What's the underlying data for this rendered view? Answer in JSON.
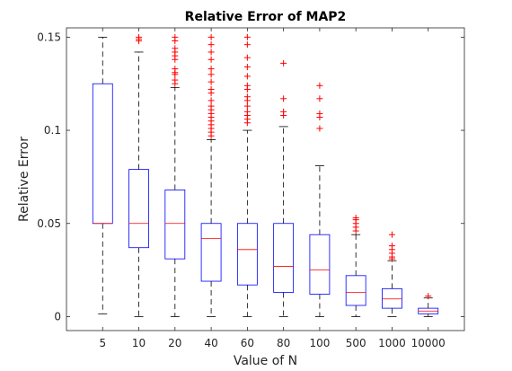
{
  "chart_data": {
    "type": "box",
    "title": "Relative Error of MAP2",
    "xlabel": "Value of N",
    "ylabel": "Relative Error",
    "categories": [
      "5",
      "10",
      "20",
      "40",
      "60",
      "80",
      "100",
      "500",
      "1000",
      "10000"
    ],
    "ylim": [
      -0.0075,
      0.155
    ],
    "yticks": [
      0,
      0.05,
      0.1,
      0.15
    ],
    "ytick_labels": [
      "0",
      "0.05",
      "0.1",
      "0.15"
    ],
    "grid": false,
    "colors": {
      "box": "#0000ff",
      "median": "#ff0000",
      "whisker": "#000000",
      "outlier": "#ff0000"
    },
    "boxes": [
      {
        "category": "5",
        "whisker_low": 0.0015,
        "q1": 0.05,
        "median": 0.05,
        "q3": 0.125,
        "whisker_high": 0.15,
        "outliers": []
      },
      {
        "category": "10",
        "whisker_low": 0.0,
        "q1": 0.037,
        "median": 0.05,
        "q3": 0.079,
        "whisker_high": 0.142,
        "outliers": [
          0.148,
          0.149,
          0.15
        ]
      },
      {
        "category": "20",
        "whisker_low": 0.0,
        "q1": 0.031,
        "median": 0.05,
        "q3": 0.068,
        "whisker_high": 0.123,
        "outliers": [
          0.125,
          0.127,
          0.13,
          0.131,
          0.133,
          0.138,
          0.14,
          0.142,
          0.144,
          0.148,
          0.15
        ]
      },
      {
        "category": "40",
        "whisker_low": 0.0,
        "q1": 0.019,
        "median": 0.042,
        "q3": 0.05,
        "whisker_high": 0.095,
        "outliers": [
          0.097,
          0.099,
          0.101,
          0.103,
          0.105,
          0.107,
          0.109,
          0.111,
          0.113,
          0.116,
          0.12,
          0.122,
          0.126,
          0.13,
          0.133,
          0.138,
          0.142,
          0.146,
          0.15
        ]
      },
      {
        "category": "60",
        "whisker_low": 0.0,
        "q1": 0.017,
        "median": 0.036,
        "q3": 0.05,
        "whisker_high": 0.1,
        "outliers": [
          0.104,
          0.106,
          0.108,
          0.11,
          0.113,
          0.116,
          0.118,
          0.122,
          0.124,
          0.129,
          0.134,
          0.139,
          0.146,
          0.15
        ]
      },
      {
        "category": "80",
        "whisker_low": 0.0,
        "q1": 0.013,
        "median": 0.027,
        "q3": 0.05,
        "whisker_high": 0.102,
        "outliers": [
          0.108,
          0.11,
          0.117,
          0.136
        ]
      },
      {
        "category": "100",
        "whisker_low": 0.0,
        "q1": 0.012,
        "median": 0.025,
        "q3": 0.044,
        "whisker_high": 0.081,
        "outliers": [
          0.101,
          0.107,
          0.109,
          0.117,
          0.124
        ]
      },
      {
        "category": "500",
        "whisker_low": 0.0,
        "q1": 0.006,
        "median": 0.013,
        "q3": 0.022,
        "whisker_high": 0.044,
        "outliers": [
          0.046,
          0.048,
          0.05,
          0.052,
          0.053
        ]
      },
      {
        "category": "1000",
        "whisker_low": 0.0,
        "q1": 0.0045,
        "median": 0.0095,
        "q3": 0.015,
        "whisker_high": 0.03,
        "outliers": [
          0.031,
          0.032,
          0.034,
          0.036,
          0.038,
          0.044
        ]
      },
      {
        "category": "10000",
        "whisker_low": 0.0,
        "q1": 0.0015,
        "median": 0.003,
        "q3": 0.0045,
        "whisker_high": 0.01,
        "outliers": [
          0.011
        ]
      }
    ]
  }
}
